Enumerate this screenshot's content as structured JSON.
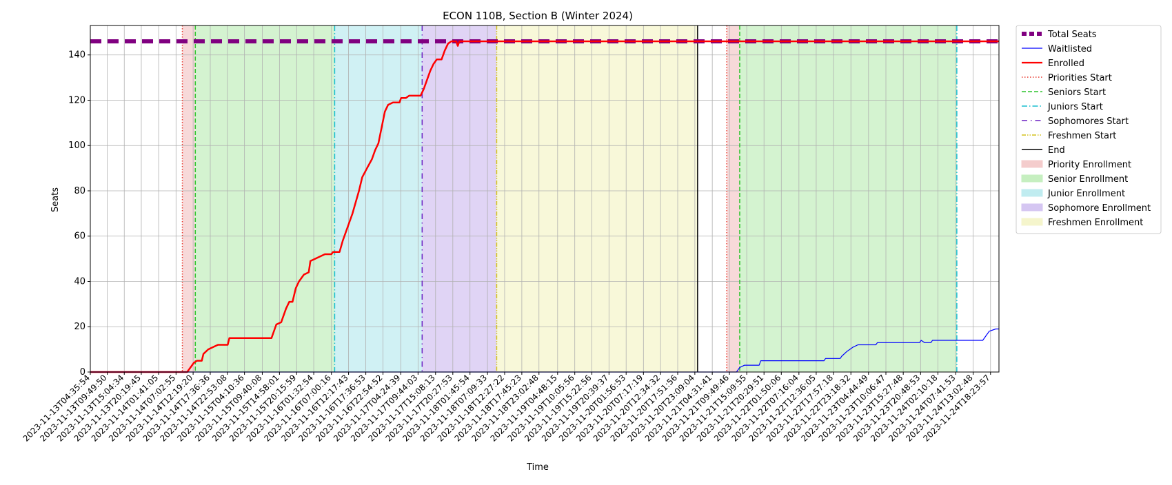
{
  "chart_data": {
    "type": "line",
    "title": "ECON 110B, Section B (Winter 2024)",
    "xlabel": "Time",
    "ylabel": "Seats",
    "x_range": [
      "2023-11-13T04:35:54",
      "2023-11-24T21:00:00"
    ],
    "ylim": [
      0,
      153
    ],
    "yticks": [
      0,
      20,
      40,
      60,
      80,
      100,
      120,
      140
    ],
    "grid": true,
    "legend_position": "outside-right",
    "xticks": [
      "2023-11-13T04:35:54",
      "2023-11-13T09:49:50",
      "2023-11-13T15:04:34",
      "2023-11-13T20:19:45",
      "2023-11-14T01:41:05",
      "2023-11-14T07:02:55",
      "2023-11-14T12:19:20",
      "2023-11-14T17:36:36",
      "2023-11-14T22:53:08",
      "2023-11-15T04:10:36",
      "2023-11-15T09:40:08",
      "2023-11-15T14:58:01",
      "2023-11-15T20:15:59",
      "2023-11-16T01:32:54",
      "2023-11-16T07:00:16",
      "2023-11-16T12:17:43",
      "2023-11-16T17:36:53",
      "2023-11-16T22:54:52",
      "2023-11-17T04:24:39",
      "2023-11-17T09:44:03",
      "2023-11-17T15:08:13",
      "2023-11-17T20:27:53",
      "2023-11-18T01:45:54",
      "2023-11-18T07:09:33",
      "2023-11-18T12:27:22",
      "2023-11-18T17:45:23",
      "2023-11-18T23:02:48",
      "2023-11-19T04:48:15",
      "2023-11-19T10:05:56",
      "2023-11-19T15:22:56",
      "2023-11-19T20:39:37",
      "2023-11-20T01:56:53",
      "2023-11-20T07:17:19",
      "2023-11-20T12:34:32",
      "2023-11-20T17:51:56",
      "2023-11-20T23:09:04",
      "2023-11-21T04:31:41",
      "2023-11-21T09:49:46",
      "2023-11-21T15:09:55",
      "2023-11-21T20:29:51",
      "2023-11-22T01:50:06",
      "2023-11-22T07:16:04",
      "2023-11-22T12:36:05",
      "2023-11-22T17:57:18",
      "2023-11-22T23:18:32",
      "2023-11-23T04:44:49",
      "2023-11-23T10:06:47",
      "2023-11-23T15:27:48",
      "2023-11-23T20:48:53",
      "2023-11-24T02:10:18",
      "2023-11-24T07:41:53",
      "2023-11-24T13:02:48",
      "2023-11-24T18:23:57"
    ],
    "total_seats": 146,
    "periods": [
      {
        "name": "Priority Enrollment",
        "start": "2023-11-14T09:00:00",
        "end": "2023-11-14T13:00:00",
        "color": "#f4cccc"
      },
      {
        "name": "Senior Enrollment",
        "start": "2023-11-14T13:00:00",
        "end": "2023-11-16T08:00:00",
        "color": "#c6efc0"
      },
      {
        "name": "Junior Enrollment",
        "start": "2023-11-16T08:00:00",
        "end": "2023-11-17T11:00:00",
        "color": "#c0ecf0"
      },
      {
        "name": "Sophomore Enrollment",
        "start": "2023-11-17T11:00:00",
        "end": "2023-11-18T10:00:00",
        "color": "#d5c6f2"
      },
      {
        "name": "Freshmen Enrollment",
        "start": "2023-11-18T10:00:00",
        "end": "2023-11-21T00:00:00",
        "color": "#f5f5cc"
      },
      {
        "name": "Priority Enrollment",
        "start": "2023-11-21T09:00:00",
        "end": "2023-11-21T13:00:00",
        "color": "#f4cccc"
      },
      {
        "name": "Senior Enrollment",
        "start": "2023-11-21T13:00:00",
        "end": "2023-11-24T08:00:00",
        "color": "#c6efc0"
      }
    ],
    "markers": [
      {
        "name": "Priorities Start",
        "at": "2023-11-14T09:00:00",
        "color": "#e8392e",
        "dash": "1.5,2.5"
      },
      {
        "name": "Seniors Start",
        "at": "2023-11-14T13:00:00",
        "color": "#2bc42b",
        "dash": "6,3"
      },
      {
        "name": "Juniors Start",
        "at": "2023-11-16T08:00:00",
        "color": "#17becf",
        "dash": "8,3,1.5,3"
      },
      {
        "name": "Sophomores Start",
        "at": "2023-11-17T11:00:00",
        "color": "#6a1fc2",
        "dash": "8,5,1.5,5"
      },
      {
        "name": "Freshmen Start",
        "at": "2023-11-18T10:00:00",
        "color": "#d4c21d",
        "dash": "6,2,1.5,2,1.5,2"
      },
      {
        "name": "End",
        "at": "2023-11-21T00:00:00",
        "color": "#000000",
        "dash": ""
      },
      {
        "name": "Priorities Start",
        "at": "2023-11-21T09:00:00",
        "color": "#e8392e",
        "dash": "1.5,2.5"
      },
      {
        "name": "Seniors Start",
        "at": "2023-11-21T13:00:00",
        "color": "#2bc42b",
        "dash": "6,3"
      },
      {
        "name": "Juniors Start",
        "at": "2023-11-24T08:00:00",
        "color": "#17becf",
        "dash": "8,3,1.5,3"
      }
    ],
    "series": [
      {
        "name": "Total Seats",
        "color": "#800080",
        "points": [
          [
            "2023-11-13T04:35:54",
            146
          ],
          [
            "2023-11-24T21:00:00",
            146
          ]
        ]
      },
      {
        "name": "Enrolled",
        "color": "#ff0000",
        "points": [
          [
            "2023-11-13T04:35:54",
            0
          ],
          [
            "2023-11-14T10:30:00",
            0
          ],
          [
            "2023-11-14T11:30:00",
            2
          ],
          [
            "2023-11-14T12:30:00",
            4
          ],
          [
            "2023-11-14T13:30:00",
            5
          ],
          [
            "2023-11-14T15:00:00",
            5
          ],
          [
            "2023-11-14T15:30:00",
            8
          ],
          [
            "2023-11-14T17:00:00",
            10
          ],
          [
            "2023-11-14T18:30:00",
            11
          ],
          [
            "2023-11-14T20:00:00",
            12
          ],
          [
            "2023-11-14T23:00:00",
            12
          ],
          [
            "2023-11-14T23:30:00",
            15
          ],
          [
            "2023-11-15T12:30:00",
            15
          ],
          [
            "2023-11-15T13:30:00",
            19
          ],
          [
            "2023-11-15T14:00:00",
            21
          ],
          [
            "2023-11-15T15:30:00",
            22
          ],
          [
            "2023-11-15T17:00:00",
            28
          ],
          [
            "2023-11-15T18:00:00",
            31
          ],
          [
            "2023-11-15T19:00:00",
            31
          ],
          [
            "2023-11-15T20:00:00",
            37
          ],
          [
            "2023-11-15T21:00:00",
            40
          ],
          [
            "2023-11-15T22:30:00",
            43
          ],
          [
            "2023-11-16T00:00:00",
            44
          ],
          [
            "2023-11-16T00:30:00",
            49
          ],
          [
            "2023-11-16T02:00:00",
            50
          ],
          [
            "2023-11-16T03:30:00",
            51
          ],
          [
            "2023-11-16T05:00:00",
            52
          ],
          [
            "2023-11-16T07:00:00",
            52
          ],
          [
            "2023-11-16T07:30:00",
            53
          ],
          [
            "2023-11-16T09:30:00",
            53
          ],
          [
            "2023-11-16T10:30:00",
            58
          ],
          [
            "2023-11-16T11:30:00",
            62
          ],
          [
            "2023-11-16T12:30:00",
            66
          ],
          [
            "2023-11-16T13:30:00",
            70
          ],
          [
            "2023-11-16T14:30:00",
            75
          ],
          [
            "2023-11-16T15:30:00",
            80
          ],
          [
            "2023-11-16T16:30:00",
            86
          ],
          [
            "2023-11-16T18:00:00",
            90
          ],
          [
            "2023-11-16T19:30:00",
            94
          ],
          [
            "2023-11-16T20:30:00",
            98
          ],
          [
            "2023-11-16T21:30:00",
            101
          ],
          [
            "2023-11-16T22:30:00",
            108
          ],
          [
            "2023-11-16T23:30:00",
            115
          ],
          [
            "2023-11-17T00:30:00",
            118
          ],
          [
            "2023-11-17T02:00:00",
            119
          ],
          [
            "2023-11-17T04:00:00",
            119
          ],
          [
            "2023-11-17T04:30:00",
            121
          ],
          [
            "2023-11-17T06:00:00",
            121
          ],
          [
            "2023-11-17T07:00:00",
            122
          ],
          [
            "2023-11-17T10:30:00",
            122
          ],
          [
            "2023-11-17T11:30:00",
            125
          ],
          [
            "2023-11-17T12:30:00",
            129
          ],
          [
            "2023-11-17T13:30:00",
            133
          ],
          [
            "2023-11-17T14:30:00",
            136
          ],
          [
            "2023-11-17T15:30:00",
            138
          ],
          [
            "2023-11-17T17:00:00",
            138
          ],
          [
            "2023-11-17T18:00:00",
            142
          ],
          [
            "2023-11-17T19:00:00",
            145
          ],
          [
            "2023-11-17T20:00:00",
            146
          ],
          [
            "2023-11-17T21:30:00",
            146
          ],
          [
            "2023-11-17T22:00:00",
            144
          ],
          [
            "2023-11-17T22:30:00",
            146
          ],
          [
            "2023-11-24T21:00:00",
            146
          ]
        ]
      },
      {
        "name": "Waitlisted",
        "color": "#0000ff",
        "points": [
          [
            "2023-11-13T04:35:54",
            0
          ],
          [
            "2023-11-21T12:00:00",
            0
          ],
          [
            "2023-11-21T13:00:00",
            2
          ],
          [
            "2023-11-21T14:30:00",
            3
          ],
          [
            "2023-11-21T19:00:00",
            3
          ],
          [
            "2023-11-21T19:30:00",
            5
          ],
          [
            "2023-11-22T15:00:00",
            5
          ],
          [
            "2023-11-22T15:30:00",
            6
          ],
          [
            "2023-11-22T20:00:00",
            6
          ],
          [
            "2023-11-22T20:30:00",
            7
          ],
          [
            "2023-11-22T22:00:00",
            9
          ],
          [
            "2023-11-23T00:00:00",
            11
          ],
          [
            "2023-11-23T01:30:00",
            12
          ],
          [
            "2023-11-23T07:00:00",
            12
          ],
          [
            "2023-11-23T07:30:00",
            13
          ],
          [
            "2023-11-23T20:30:00",
            13
          ],
          [
            "2023-11-23T21:00:00",
            14
          ],
          [
            "2023-11-23T22:00:00",
            13
          ],
          [
            "2023-11-24T00:00:00",
            13
          ],
          [
            "2023-11-24T00:30:00",
            14
          ],
          [
            "2023-11-24T16:00:00",
            14
          ],
          [
            "2023-11-24T17:00:00",
            16
          ],
          [
            "2023-11-24T18:00:00",
            18
          ],
          [
            "2023-11-24T20:00:00",
            19
          ],
          [
            "2023-11-24T21:00:00",
            19
          ]
        ]
      }
    ],
    "legend": [
      {
        "label": "Total Seats",
        "kind": "line",
        "color": "#800080",
        "width": 6,
        "dash": "7,4"
      },
      {
        "label": "Waitlisted",
        "kind": "line",
        "color": "#0000ff",
        "width": 1.2,
        "dash": ""
      },
      {
        "label": "Enrolled",
        "kind": "line",
        "color": "#ff0000",
        "width": 2.2,
        "dash": ""
      },
      {
        "label": "Priorities Start",
        "kind": "line",
        "color": "#e8392e",
        "width": 1.5,
        "dash": "1.5,2.5"
      },
      {
        "label": "Seniors Start",
        "kind": "line",
        "color": "#2bc42b",
        "width": 1.5,
        "dash": "6,3"
      },
      {
        "label": "Juniors Start",
        "kind": "line",
        "color": "#17becf",
        "width": 1.5,
        "dash": "8,3,1.5,3"
      },
      {
        "label": "Sophomores Start",
        "kind": "line",
        "color": "#6a1fc2",
        "width": 1.5,
        "dash": "8,5,1.5,5"
      },
      {
        "label": "Freshmen Start",
        "kind": "line",
        "color": "#d4c21d",
        "width": 1.5,
        "dash": "6,2,1.5,2,1.5,2"
      },
      {
        "label": "End",
        "kind": "line",
        "color": "#000000",
        "width": 1.5,
        "dash": ""
      },
      {
        "label": "Priority Enrollment",
        "kind": "patch",
        "color": "#f4cccc"
      },
      {
        "label": "Senior Enrollment",
        "kind": "patch",
        "color": "#c6efc0"
      },
      {
        "label": "Junior Enrollment",
        "kind": "patch",
        "color": "#c0ecf0"
      },
      {
        "label": "Sophomore Enrollment",
        "kind": "patch",
        "color": "#d5c6f2"
      },
      {
        "label": "Freshmen Enrollment",
        "kind": "patch",
        "color": "#f5f5cc"
      }
    ]
  }
}
